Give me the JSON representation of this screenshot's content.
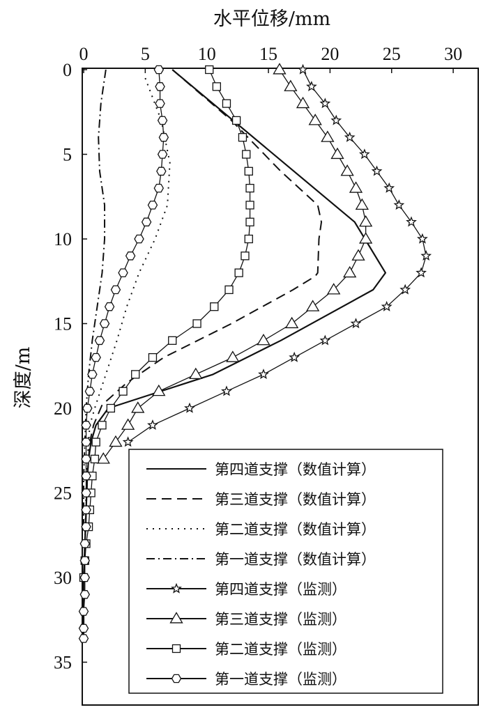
{
  "chart_data": {
    "type": "line",
    "xlabel": "水平位移/mm",
    "ylabel": "深度/m",
    "xlim": [
      0,
      30
    ],
    "ylim": [
      0,
      36
    ],
    "x_ticks": [
      0,
      5,
      10,
      15,
      20,
      25,
      30
    ],
    "y_ticks": [
      0,
      5,
      10,
      15,
      20,
      25,
      30,
      35
    ],
    "y_inverted": true,
    "x_axis_position": "top",
    "legend_position": "bottom-right",
    "series": [
      {
        "name": "第四道支撑（数值计算）",
        "style": "solid",
        "marker": "none",
        "points": [
          [
            7.2,
            0
          ],
          [
            22,
            9
          ],
          [
            24.5,
            12
          ],
          [
            23.5,
            13
          ],
          [
            16,
            16
          ],
          [
            10.5,
            18
          ],
          [
            2,
            20
          ],
          [
            1,
            21
          ],
          [
            0.6,
            22
          ],
          [
            0.4,
            23
          ],
          [
            0.3,
            24
          ],
          [
            0.2,
            26
          ],
          [
            0.1,
            28
          ],
          [
            0,
            30
          ],
          [
            0,
            33.5
          ]
        ]
      },
      {
        "name": "第三道支撑（数值计算）",
        "style": "dashed",
        "marker": "none",
        "points": [
          [
            7.2,
            0
          ],
          [
            12,
            3
          ],
          [
            16,
            6
          ],
          [
            19,
            8
          ],
          [
            19.3,
            9
          ],
          [
            19.1,
            10
          ],
          [
            19,
            12
          ],
          [
            18.8,
            12.2
          ],
          [
            17,
            13
          ],
          [
            12,
            15
          ],
          [
            6.5,
            17
          ],
          [
            3.5,
            18.5
          ],
          [
            1.5,
            19.8
          ],
          [
            0.8,
            21
          ],
          [
            0.5,
            22
          ],
          [
            0.3,
            24
          ],
          [
            0.2,
            26
          ],
          [
            0.1,
            28
          ],
          [
            0,
            30
          ]
        ]
      },
      {
        "name": "第二道支撑（数值计算）",
        "style": "dotted",
        "marker": "none",
        "points": [
          [
            5,
            0.5
          ],
          [
            6.3,
            3
          ],
          [
            7,
            5.5
          ],
          [
            6.8,
            8
          ],
          [
            5.8,
            10
          ],
          [
            4.5,
            12
          ],
          [
            3.5,
            14
          ],
          [
            2.7,
            16
          ],
          [
            1.8,
            18
          ],
          [
            0.9,
            20
          ],
          [
            0.5,
            21
          ],
          [
            0.3,
            23
          ],
          [
            0.2,
            25
          ],
          [
            0.1,
            28
          ],
          [
            0,
            30
          ]
        ]
      },
      {
        "name": "第一道支撑（数值计算）",
        "style": "dashdot",
        "marker": "none",
        "points": [
          [
            1.8,
            0
          ],
          [
            1.4,
            2
          ],
          [
            1.2,
            4
          ],
          [
            1.3,
            6
          ],
          [
            1.7,
            8
          ],
          [
            1.7,
            10
          ],
          [
            1.5,
            12
          ],
          [
            1.1,
            14
          ],
          [
            0.7,
            16
          ],
          [
            0.4,
            18
          ],
          [
            0.2,
            20
          ],
          [
            0.1,
            22
          ],
          [
            0,
            24
          ],
          [
            0,
            27
          ]
        ]
      },
      {
        "name": "第四道支撑（监测）",
        "style": "solid",
        "marker": "star",
        "points": [
          [
            17.8,
            0
          ],
          [
            18.5,
            1
          ],
          [
            19.6,
            2
          ],
          [
            20.5,
            3
          ],
          [
            21.6,
            4
          ],
          [
            22.8,
            5
          ],
          [
            23.8,
            6
          ],
          [
            24.8,
            7
          ],
          [
            25.6,
            8
          ],
          [
            26.6,
            9
          ],
          [
            27.5,
            10
          ],
          [
            27.8,
            11
          ],
          [
            27.4,
            12
          ],
          [
            26.1,
            13
          ],
          [
            24.6,
            14
          ],
          [
            22.1,
            15
          ],
          [
            19.6,
            16
          ],
          [
            17.1,
            17
          ],
          [
            14.6,
            18
          ],
          [
            11.6,
            19
          ],
          [
            8.6,
            20
          ],
          [
            5.6,
            21
          ],
          [
            3.6,
            22
          ]
        ]
      },
      {
        "name": "第三道支撑（监测）",
        "style": "solid",
        "marker": "triangle",
        "points": [
          [
            15.9,
            0
          ],
          [
            16.8,
            1
          ],
          [
            17.8,
            2
          ],
          [
            18.8,
            3
          ],
          [
            19.8,
            4
          ],
          [
            20.6,
            5
          ],
          [
            21.4,
            6
          ],
          [
            22.1,
            7
          ],
          [
            22.6,
            8
          ],
          [
            22.9,
            9
          ],
          [
            22.9,
            10
          ],
          [
            22.3,
            11
          ],
          [
            21.6,
            12
          ],
          [
            20.3,
            13
          ],
          [
            18.6,
            14
          ],
          [
            16.9,
            15
          ],
          [
            14.6,
            16
          ],
          [
            12.1,
            17
          ],
          [
            9.1,
            18
          ],
          [
            6.1,
            19
          ],
          [
            4.4,
            20
          ],
          [
            3.6,
            21
          ],
          [
            2.6,
            22
          ],
          [
            1.6,
            23
          ]
        ]
      },
      {
        "name": "第二道支撑（监测）",
        "style": "solid",
        "marker": "square",
        "points": [
          [
            10.2,
            0
          ],
          [
            10.8,
            1
          ],
          [
            11.6,
            2
          ],
          [
            12.4,
            3
          ],
          [
            12.9,
            4
          ],
          [
            13.2,
            5
          ],
          [
            13.4,
            6
          ],
          [
            13.5,
            7
          ],
          [
            13.5,
            8
          ],
          [
            13.5,
            9
          ],
          [
            13.4,
            10
          ],
          [
            13.1,
            11
          ],
          [
            12.6,
            12
          ],
          [
            11.8,
            13
          ],
          [
            10.6,
            14
          ],
          [
            9.2,
            15
          ],
          [
            7.2,
            16
          ],
          [
            5.6,
            17
          ],
          [
            4.2,
            18
          ],
          [
            3.2,
            19
          ],
          [
            2.2,
            20
          ],
          [
            1.5,
            21
          ],
          [
            1,
            22
          ],
          [
            0.9,
            23
          ],
          [
            0.7,
            24
          ],
          [
            0.6,
            25
          ],
          [
            0.5,
            26
          ],
          [
            0.4,
            27
          ],
          [
            0.2,
            28
          ],
          [
            0.1,
            29
          ],
          [
            0,
            30
          ]
        ]
      },
      {
        "name": "第一道支撑（监测）",
        "style": "solid",
        "marker": "hexagon",
        "points": [
          [
            6.1,
            0
          ],
          [
            6.2,
            1
          ],
          [
            6.2,
            2
          ],
          [
            6.4,
            3
          ],
          [
            6.5,
            4
          ],
          [
            6.4,
            5
          ],
          [
            6.3,
            6
          ],
          [
            6.1,
            7
          ],
          [
            5.6,
            8
          ],
          [
            5.1,
            9
          ],
          [
            4.5,
            10
          ],
          [
            3.8,
            11
          ],
          [
            3.2,
            12
          ],
          [
            2.6,
            13
          ],
          [
            2.1,
            14
          ],
          [
            1.7,
            15
          ],
          [
            1.3,
            16
          ],
          [
            1,
            17
          ],
          [
            0.7,
            18
          ],
          [
            0.5,
            19
          ],
          [
            0.3,
            20
          ],
          [
            0.2,
            21
          ],
          [
            0.2,
            22
          ],
          [
            0.2,
            23
          ],
          [
            0.2,
            24
          ],
          [
            0.2,
            25
          ],
          [
            0.2,
            26
          ],
          [
            0.2,
            27
          ],
          [
            0.1,
            28
          ],
          [
            0.1,
            29
          ],
          [
            0.1,
            30
          ],
          [
            0.1,
            31
          ],
          [
            0,
            32
          ],
          [
            0,
            33
          ],
          [
            0,
            33.6
          ]
        ]
      }
    ]
  }
}
